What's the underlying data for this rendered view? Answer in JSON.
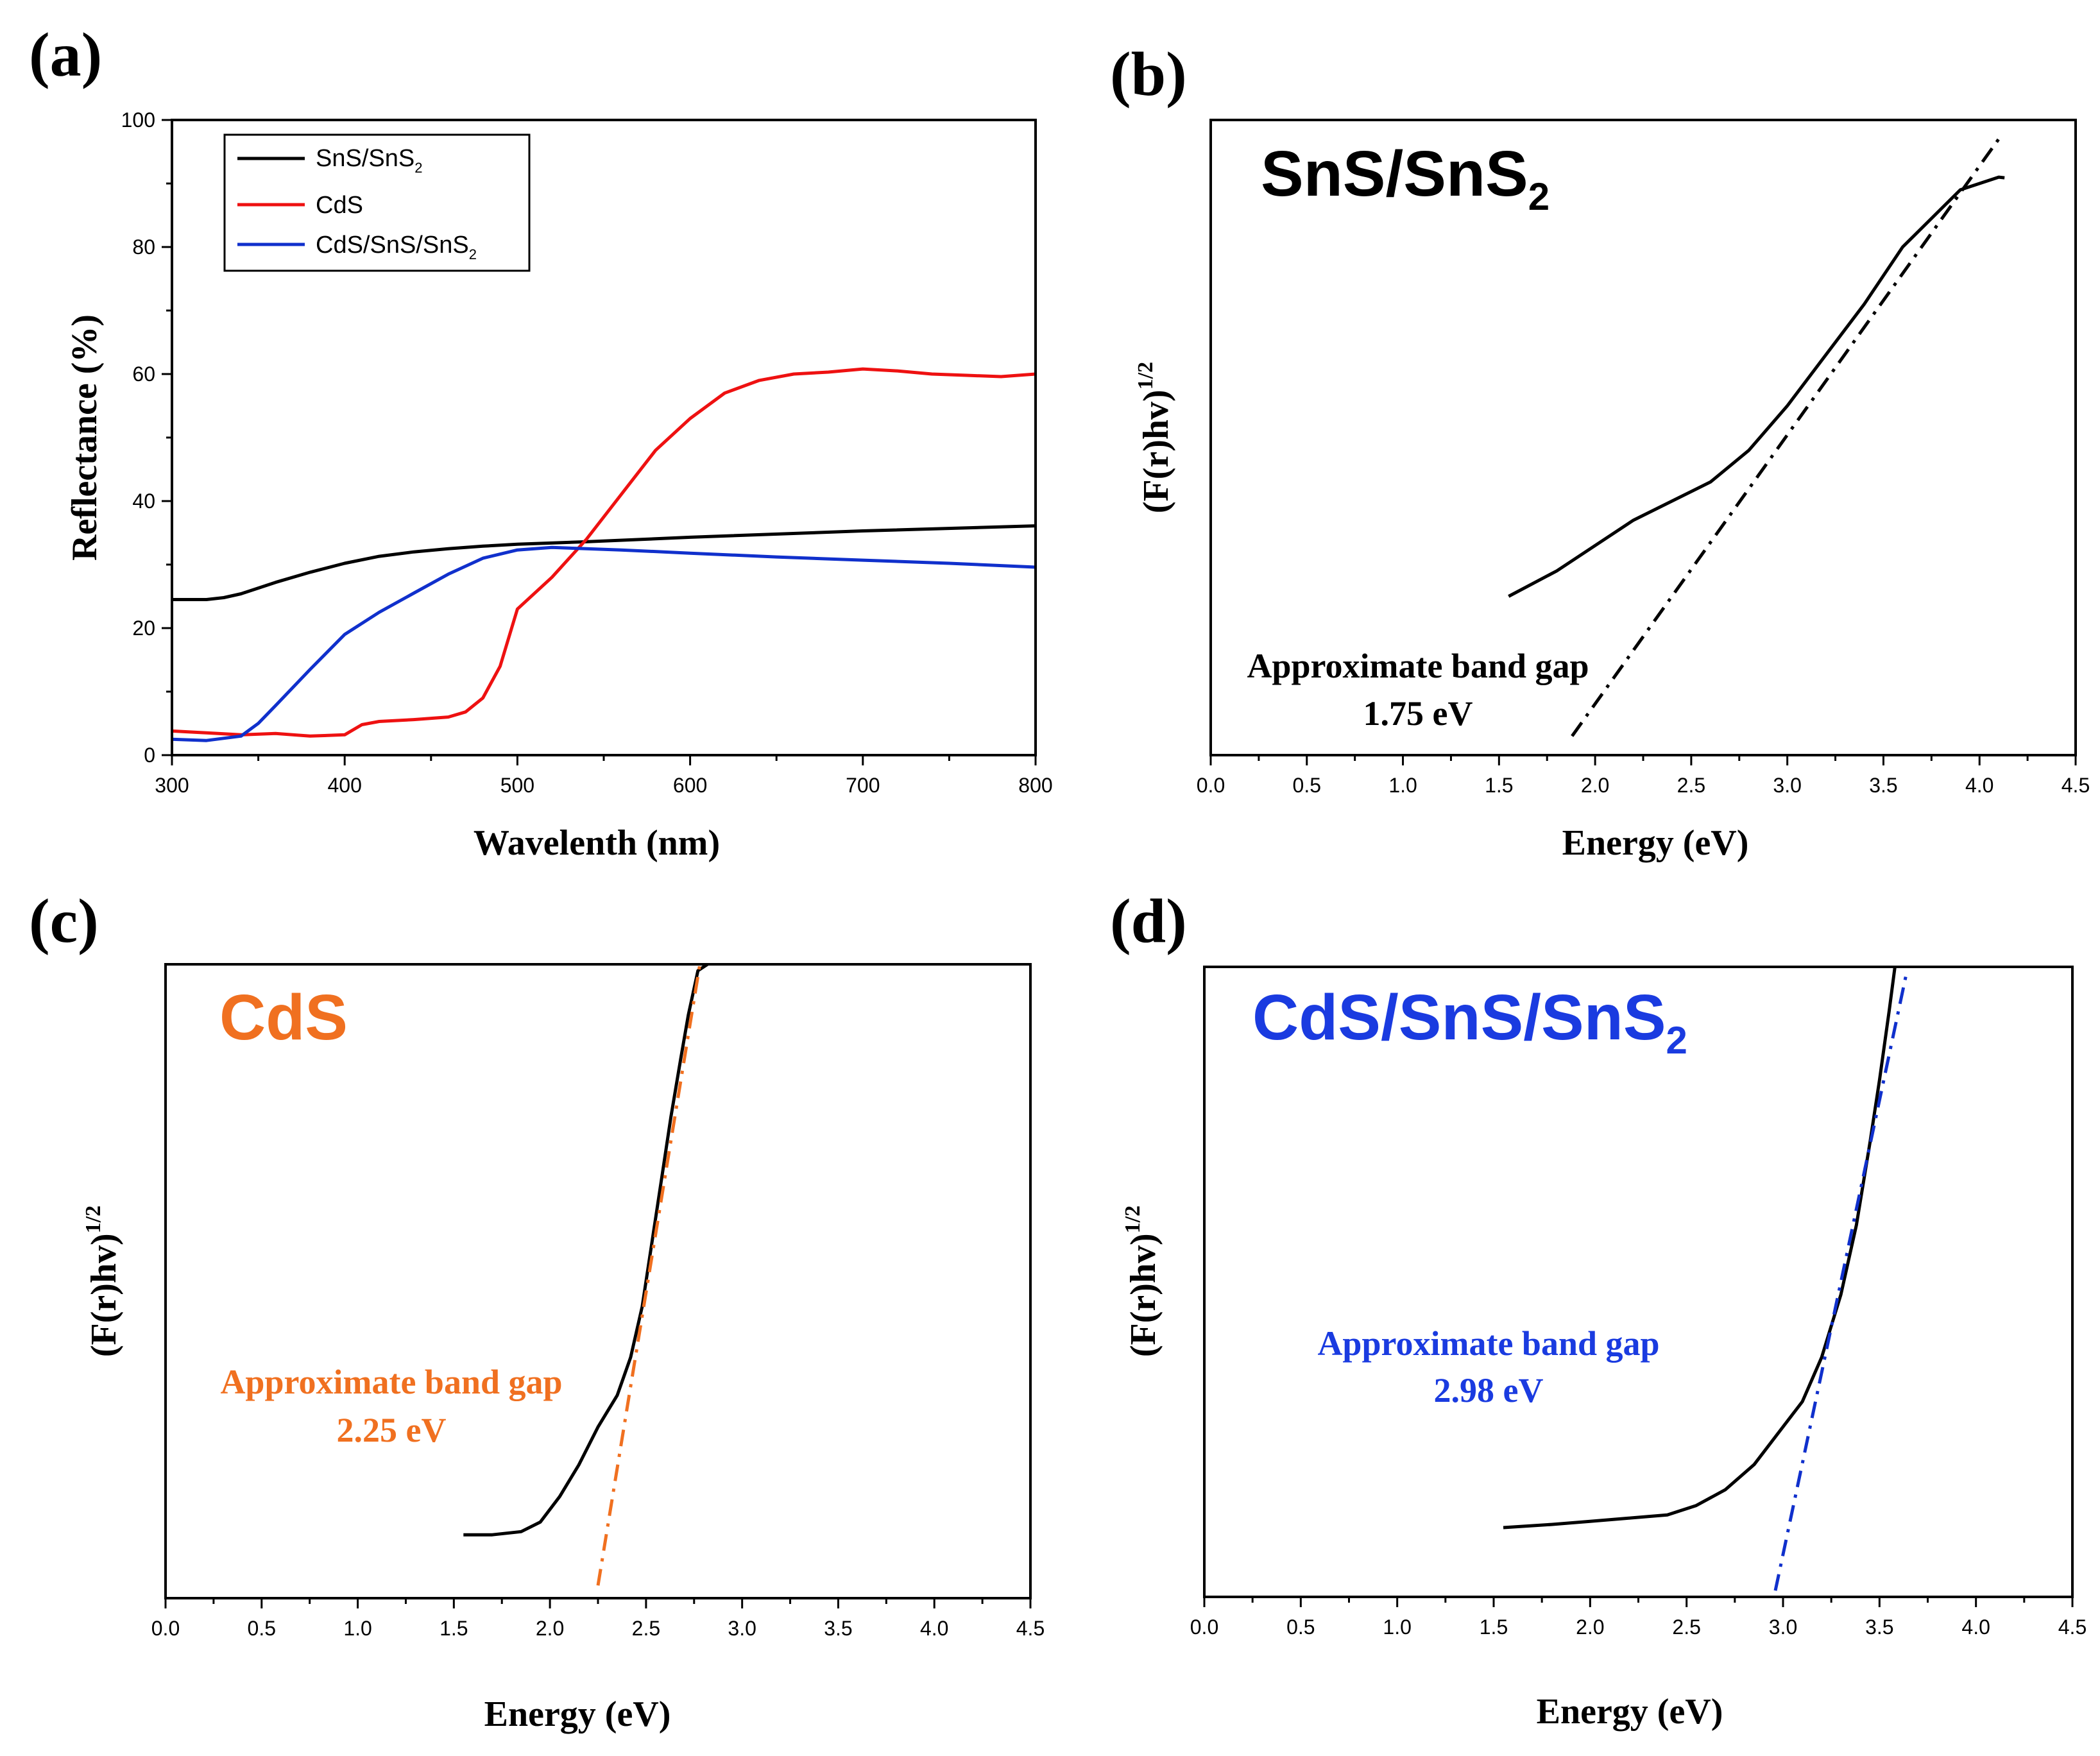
{
  "colors": {
    "black": "#000000",
    "red": "#ee1111",
    "blue": "#1030cc",
    "orange": "#f07020",
    "blue_text": "#1a3be0"
  },
  "chart_data": [
    {
      "type": "line",
      "panel_label": "(a)",
      "xlabel": "Wavelenth (nm)",
      "ylabel": "Reflectance (%)",
      "xlim": [
        300,
        800
      ],
      "ylim": [
        0,
        100
      ],
      "xticks": [
        "300",
        "400",
        "500",
        "600",
        "700",
        "800"
      ],
      "yticks": [
        "0",
        "20",
        "40",
        "60",
        "80",
        "100"
      ],
      "legend": {
        "position": "top-left",
        "entries": [
          {
            "base": "SnS/SnS",
            "sub": "2",
            "color": "#000000"
          },
          {
            "base": "CdS",
            "sub": "",
            "color": "#ee1111"
          },
          {
            "base": "CdS/SnS/SnS",
            "sub": "2",
            "color": "#1030cc"
          }
        ]
      },
      "series": [
        {
          "name": "SnS/SnS2",
          "color": "#000000",
          "x": [
            300,
            320,
            330,
            340,
            350,
            360,
            380,
            400,
            420,
            440,
            460,
            480,
            500,
            540,
            600,
            700,
            800
          ],
          "y": [
            24.5,
            24.5,
            24.8,
            25.4,
            26.3,
            27.2,
            28.8,
            30.2,
            31.3,
            32.0,
            32.5,
            32.9,
            33.2,
            33.6,
            34.3,
            35.3,
            36.1
          ]
        },
        {
          "name": "CdS",
          "color": "#ee1111",
          "x": [
            300,
            320,
            340,
            360,
            380,
            400,
            410,
            420,
            440,
            460,
            470,
            480,
            490,
            500,
            520,
            540,
            560,
            580,
            600,
            620,
            640,
            660,
            680,
            700,
            720,
            740,
            760,
            780,
            800
          ],
          "y": [
            3.8,
            3.5,
            3.2,
            3.4,
            3.0,
            3.2,
            4.8,
            5.3,
            5.6,
            6.0,
            6.8,
            9.0,
            14.0,
            23.0,
            28.0,
            34.0,
            41.0,
            48.0,
            53.0,
            57.0,
            59.0,
            60.0,
            60.3,
            60.8,
            60.5,
            60.0,
            59.8,
            59.6,
            60.0
          ]
        },
        {
          "name": "CdS/SnS/SnS2",
          "color": "#1030cc",
          "x": [
            300,
            320,
            340,
            350,
            360,
            380,
            400,
            420,
            440,
            460,
            480,
            500,
            520,
            540,
            560,
            600,
            650,
            700,
            750,
            800
          ],
          "y": [
            2.5,
            2.3,
            3.0,
            5.0,
            7.8,
            13.5,
            19.0,
            22.5,
            25.5,
            28.5,
            31.0,
            32.3,
            32.7,
            32.5,
            32.3,
            31.8,
            31.2,
            30.7,
            30.2,
            29.6
          ]
        }
      ]
    },
    {
      "type": "line",
      "panel_label": "(b)",
      "title_base": "SnS/SnS",
      "title_sub": "2",
      "xlabel": "Energy (eV)",
      "ylabel_base": "(F(r)hv)",
      "ylabel_sup": "1/2",
      "xlim": [
        0,
        4.5
      ],
      "ylim": [
        0,
        1
      ],
      "xticks": [
        "0.0",
        "0.5",
        "1.0",
        "1.5",
        "2.0",
        "2.5",
        "3.0",
        "3.5",
        "4.0",
        "4.5"
      ],
      "annotation": [
        "Approximate band gap",
        "1.75 eV"
      ],
      "band_gap_eV": 1.75,
      "series": [
        {
          "name": "SnS/SnS2",
          "color": "#000000",
          "x": [
            1.55,
            1.8,
            2.0,
            2.2,
            2.4,
            2.6,
            2.8,
            3.0,
            3.2,
            3.4,
            3.6,
            3.8,
            3.9,
            4.0,
            4.1,
            4.13
          ],
          "y": [
            0.25,
            0.29,
            0.33,
            0.37,
            0.4,
            0.43,
            0.48,
            0.55,
            0.63,
            0.71,
            0.8,
            0.86,
            0.89,
            0.9,
            0.91,
            0.909
          ]
        },
        {
          "name": "tangent",
          "style": "dashdot",
          "color": "#000000",
          "x": [
            1.88,
            4.1
          ],
          "y": [
            0.03,
            0.97
          ]
        }
      ]
    },
    {
      "type": "line",
      "panel_label": "(c)",
      "title_base": "CdS",
      "title_sub": "",
      "xlabel": "Energy (eV)",
      "ylabel_base": "(F(r)hv)",
      "ylabel_sup": "1/2",
      "xlim": [
        0,
        4.5
      ],
      "ylim": [
        0,
        1
      ],
      "xticks": [
        "0.0",
        "0.5",
        "1.0",
        "1.5",
        "2.0",
        "2.5",
        "3.0",
        "3.5",
        "4.0",
        "4.5"
      ],
      "annotation": [
        "Approximate band gap",
        "2.25 eV"
      ],
      "band_gap_eV": 2.25,
      "series": [
        {
          "name": "CdS",
          "color": "#000000",
          "x": [
            1.55,
            1.7,
            1.85,
            1.95,
            2.05,
            2.15,
            2.25,
            2.35,
            2.42,
            2.48,
            2.53,
            2.58,
            2.63,
            2.68,
            2.72,
            2.77,
            2.82
          ],
          "y": [
            0.1,
            0.1,
            0.105,
            0.12,
            0.16,
            0.21,
            0.27,
            0.32,
            0.38,
            0.46,
            0.56,
            0.66,
            0.76,
            0.85,
            0.92,
            0.99,
            1.0
          ]
        },
        {
          "name": "tangent",
          "style": "dashdot",
          "color": "#f07020",
          "x": [
            2.25,
            2.78
          ],
          "y": [
            0.02,
            1.0
          ]
        }
      ]
    },
    {
      "type": "line",
      "panel_label": "(d)",
      "title_base": "CdS/SnS/SnS",
      "title_sub": "2",
      "xlabel": "Energy (eV)",
      "ylabel_base": "(F(r)hv)",
      "ylabel_sup": "1/2",
      "xlim": [
        0,
        4.5
      ],
      "ylim": [
        0,
        1
      ],
      "xticks": [
        "0.0",
        "0.5",
        "1.0",
        "1.5",
        "2.0",
        "2.5",
        "3.0",
        "3.5",
        "4.0",
        "4.5"
      ],
      "annotation": [
        "Approximate band gap",
        "2.98 eV"
      ],
      "band_gap_eV": 2.98,
      "series": [
        {
          "name": "CdS/SnS/SnS2",
          "color": "#000000",
          "x": [
            1.55,
            1.8,
            2.0,
            2.2,
            2.4,
            2.55,
            2.7,
            2.85,
            3.0,
            3.1,
            3.2,
            3.3,
            3.38,
            3.45,
            3.5,
            3.55,
            3.58
          ],
          "y": [
            0.11,
            0.115,
            0.12,
            0.125,
            0.13,
            0.145,
            0.17,
            0.21,
            0.27,
            0.31,
            0.38,
            0.48,
            0.59,
            0.72,
            0.82,
            0.93,
            1.0
          ]
        },
        {
          "name": "tangent",
          "style": "dashdot",
          "color": "#1030cc",
          "x": [
            2.96,
            3.64
          ],
          "y": [
            0.01,
            0.99
          ]
        }
      ]
    }
  ]
}
